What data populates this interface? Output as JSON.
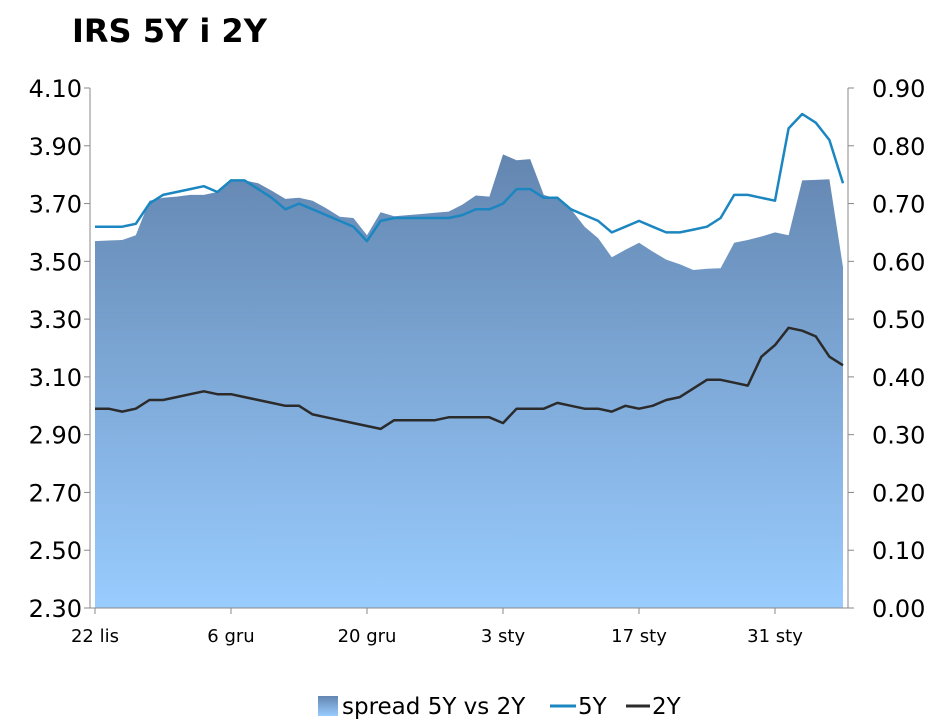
{
  "chart_data": {
    "type": "line",
    "title": "IRS 5Y i 2Y",
    "left_axis": {
      "ticks": [
        "4.10",
        "3.90",
        "3.70",
        "3.50",
        "3.30",
        "3.10",
        "2.90",
        "2.70",
        "2.50",
        "2.30"
      ],
      "range": [
        2.3,
        4.1
      ]
    },
    "right_axis": {
      "ticks": [
        "0.90",
        "0.80",
        "0.70",
        "0.60",
        "0.50",
        "0.40",
        "0.30",
        "0.20",
        "0.10",
        "0.00"
      ],
      "range": [
        0.0,
        0.9
      ]
    },
    "x_ticks": [
      "22 lis",
      "6 gru",
      "20 gru",
      "3 sty",
      "17 sty",
      "31 sty"
    ],
    "x_tick_index": [
      0,
      10,
      20,
      30,
      40,
      50
    ],
    "n_points": 56,
    "legend": {
      "spread": "spread 5Y vs 2Y",
      "five": "5Y",
      "two": "2Y"
    },
    "colors": {
      "five": "#1b86c0",
      "two": "#2b2b2b",
      "area_top": "#6386b0",
      "area_bottom": "#99ccff"
    },
    "series": [
      {
        "name": "spread 5Y vs 2Y",
        "axis": "right",
        "values": [
          0.635,
          0.636,
          0.637,
          0.645,
          0.705,
          0.71,
          0.712,
          0.715,
          0.715,
          0.72,
          0.742,
          0.74,
          0.735,
          0.722,
          0.708,
          0.71,
          0.705,
          0.692,
          0.677,
          0.675,
          0.645,
          0.685,
          0.678,
          0.68,
          0.682,
          0.684,
          0.686,
          0.698,
          0.714,
          0.712,
          0.785,
          0.775,
          0.777,
          0.715,
          0.708,
          0.69,
          0.66,
          0.64,
          0.607,
          0.62,
          0.632,
          0.617,
          0.603,
          0.595,
          0.585,
          0.587,
          0.588,
          0.632,
          0.637,
          0.643,
          0.65,
          0.645,
          0.74,
          0.741,
          0.742,
          0.59
        ]
      },
      {
        "name": "5Y",
        "axis": "left",
        "values": [
          3.62,
          3.62,
          3.62,
          3.63,
          3.7,
          3.73,
          3.74,
          3.75,
          3.76,
          3.74,
          3.78,
          3.78,
          3.75,
          3.72,
          3.68,
          3.7,
          3.68,
          3.66,
          3.64,
          3.62,
          3.57,
          3.64,
          3.65,
          3.65,
          3.65,
          3.65,
          3.65,
          3.66,
          3.68,
          3.68,
          3.7,
          3.75,
          3.75,
          3.72,
          3.72,
          3.68,
          3.66,
          3.64,
          3.6,
          3.62,
          3.64,
          3.62,
          3.6,
          3.6,
          3.61,
          3.62,
          3.65,
          3.73,
          3.73,
          3.72,
          3.71,
          3.96,
          4.01,
          3.98,
          3.92,
          3.77
        ]
      },
      {
        "name": "2Y",
        "axis": "left",
        "values": [
          2.99,
          2.99,
          2.98,
          2.99,
          3.02,
          3.02,
          3.03,
          3.04,
          3.05,
          3.04,
          3.04,
          3.03,
          3.02,
          3.01,
          3.0,
          3.0,
          2.97,
          2.96,
          2.95,
          2.94,
          2.93,
          2.92,
          2.95,
          2.95,
          2.95,
          2.95,
          2.96,
          2.96,
          2.96,
          2.96,
          2.94,
          2.99,
          2.99,
          2.99,
          3.01,
          3.0,
          2.99,
          2.99,
          2.98,
          3.0,
          2.99,
          3.0,
          3.02,
          3.03,
          3.06,
          3.09,
          3.09,
          3.08,
          3.07,
          3.17,
          3.21,
          3.27,
          3.26,
          3.24,
          3.17,
          3.14
        ]
      }
    ]
  }
}
